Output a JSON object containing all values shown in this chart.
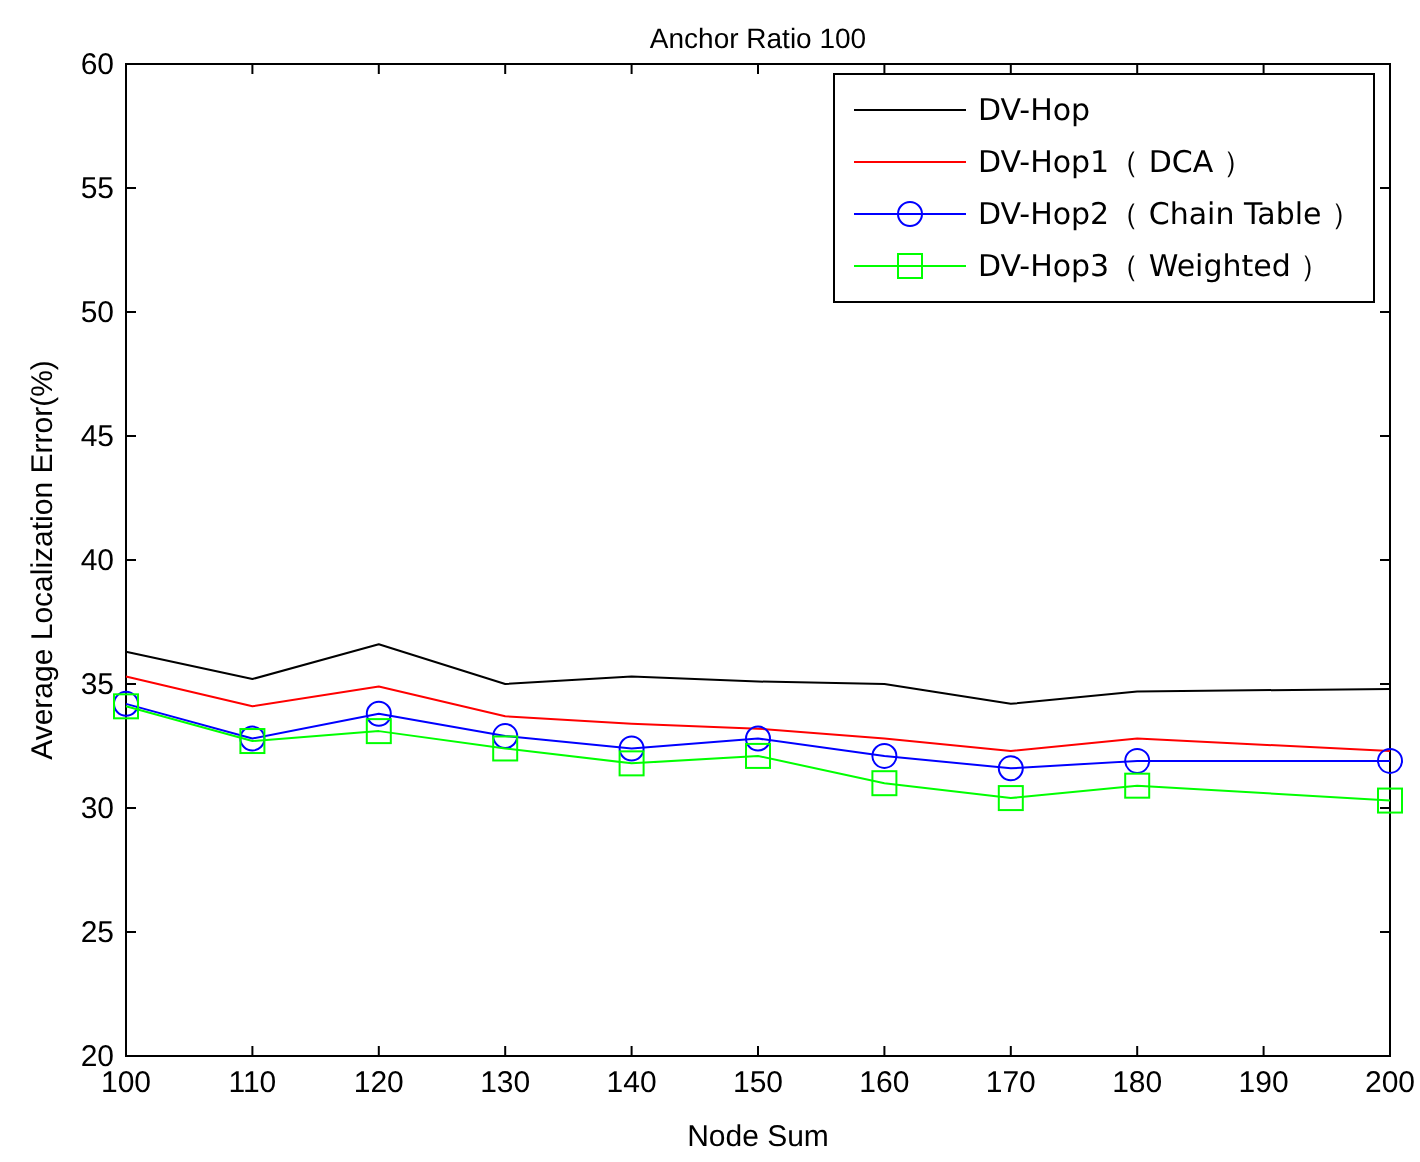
{
  "chart_data": {
    "type": "line",
    "title": "Anchor Ratio 100",
    "xlabel": "Node Sum",
    "ylabel": "Average Localization Error(%)",
    "x": [
      100,
      110,
      120,
      130,
      140,
      150,
      160,
      170,
      180,
      200
    ],
    "xlim": [
      100,
      200
    ],
    "xticks": [
      100,
      110,
      120,
      130,
      140,
      150,
      160,
      170,
      180,
      190,
      200
    ],
    "ylim": [
      20,
      60
    ],
    "yticks": [
      20,
      25,
      30,
      35,
      40,
      45,
      50,
      55,
      60
    ],
    "legend": "top right",
    "grid": false,
    "series": [
      {
        "name": "DV-Hop",
        "color": "#000000",
        "marker": "none",
        "values": [
          36.3,
          35.2,
          36.6,
          35.0,
          35.3,
          35.1,
          35.0,
          34.2,
          34.7,
          34.8
        ]
      },
      {
        "name": "DV-Hop1（ DCA ）",
        "color": "#ff0000",
        "marker": "none",
        "values": [
          35.3,
          34.1,
          34.9,
          33.7,
          33.4,
          33.2,
          32.8,
          32.3,
          32.8,
          32.3
        ]
      },
      {
        "name": "DV-Hop2（ Chain Table ）",
        "color": "#0000ff",
        "marker": "circle",
        "values": [
          34.2,
          32.8,
          33.8,
          32.9,
          32.4,
          32.8,
          32.1,
          31.6,
          31.9,
          31.9
        ]
      },
      {
        "name": "DV-Hop3（ Weighted ）",
        "color": "#00ff00",
        "marker": "square",
        "values": [
          34.1,
          32.7,
          33.1,
          32.4,
          31.8,
          32.1,
          31.0,
          30.4,
          30.9,
          30.3
        ]
      }
    ]
  }
}
